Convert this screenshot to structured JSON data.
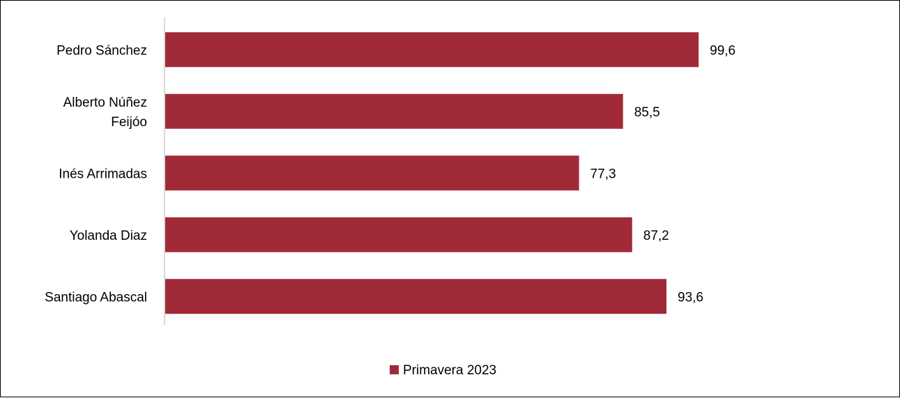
{
  "chart_data": {
    "type": "bar",
    "orientation": "horizontal",
    "categories": [
      [
        "Pedro Sánchez"
      ],
      [
        "Alberto Núñez",
        "Feijóo"
      ],
      [
        "Inés Arrimadas"
      ],
      [
        "Yolanda Diaz"
      ],
      [
        "Santiago Abascal"
      ]
    ],
    "series": [
      {
        "name": "Primavera 2023",
        "color": "#A12A38",
        "values": [
          99.6,
          85.5,
          77.3,
          87.2,
          93.6
        ],
        "labels": [
          "99,6",
          "85,5",
          "77,3",
          "87,2",
          "93,6"
        ]
      }
    ],
    "xlim": [
      0,
      130
    ],
    "grid": false,
    "legend_position": "bottom"
  }
}
